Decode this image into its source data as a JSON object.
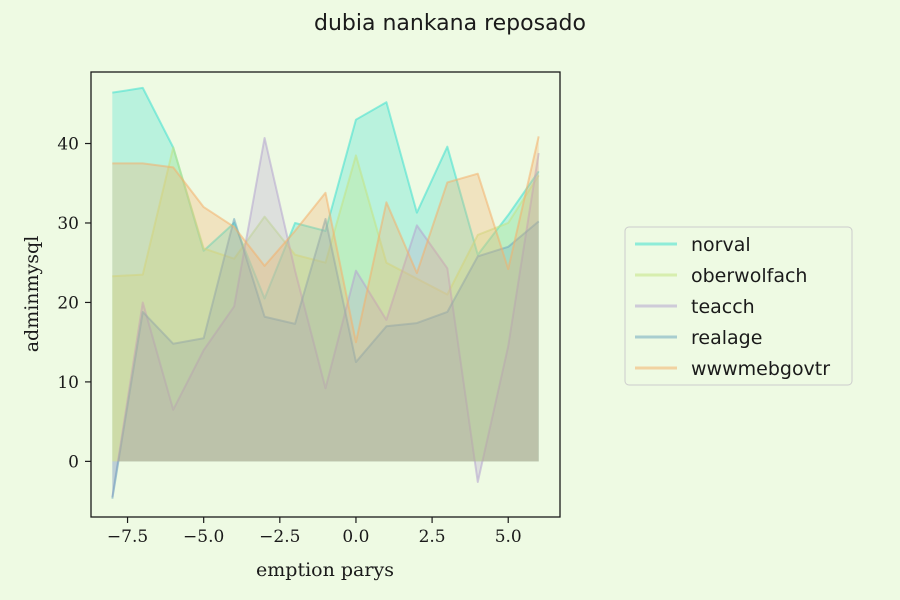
{
  "chart_data": {
    "type": "area",
    "title": "dubia nankana reposado",
    "xlabel": "emption parys",
    "ylabel": "adminmysql",
    "xlim": [
      -8.7,
      6.7
    ],
    "ylim": [
      -7,
      49
    ],
    "xticks": [
      -7.5,
      -5.0,
      -2.5,
      0.0,
      2.5,
      5.0
    ],
    "xtick_labels": [
      "−7.5",
      "−5.0",
      "−2.5",
      "0.0",
      "2.5",
      "5.0"
    ],
    "yticks": [
      0,
      10,
      20,
      30,
      40
    ],
    "ytick_labels": [
      "0",
      "10",
      "20",
      "30",
      "40"
    ],
    "grid": false,
    "legend_position": "right",
    "x": [
      -8,
      -7,
      -6,
      -5,
      -4,
      -3,
      -2,
      -1,
      0,
      1,
      2,
      3,
      4,
      5,
      6
    ],
    "series": [
      {
        "name": "norval",
        "color": "#40e0d0",
        "values": [
          46.4,
          47.0,
          39.5,
          26.5,
          30.0,
          20.5,
          30.0,
          29.0,
          43.0,
          45.2,
          31.3,
          39.6,
          26.0,
          31.0,
          36.5
        ]
      },
      {
        "name": "oberwolfach",
        "color": "#c5e384",
        "values": [
          23.3,
          23.5,
          39.5,
          26.8,
          25.5,
          30.8,
          26.0,
          25.0,
          38.5,
          25.0,
          23.0,
          21.0,
          28.5,
          30.0,
          36.0
        ]
      },
      {
        "name": "teacch",
        "color": "#b5a4cf",
        "values": [
          -4.5,
          20.0,
          6.5,
          14.0,
          19.5,
          40.7,
          24.0,
          9.2,
          24.0,
          17.8,
          29.7,
          24.3,
          -2.6,
          14.5,
          38.8
        ]
      },
      {
        "name": "realage",
        "color": "#6fa8c0",
        "values": [
          -4.7,
          18.8,
          14.8,
          15.5,
          30.5,
          18.2,
          17.3,
          30.5,
          12.5,
          17.0,
          17.4,
          18.8,
          25.8,
          27.0,
          30.2
        ]
      },
      {
        "name": "wwwmebgovtr",
        "color": "#f4b06c",
        "values": [
          37.5,
          37.5,
          37.0,
          32.0,
          29.5,
          24.6,
          29.0,
          33.8,
          15.0,
          32.6,
          23.7,
          35.1,
          36.2,
          24.2,
          40.9
        ]
      }
    ]
  }
}
